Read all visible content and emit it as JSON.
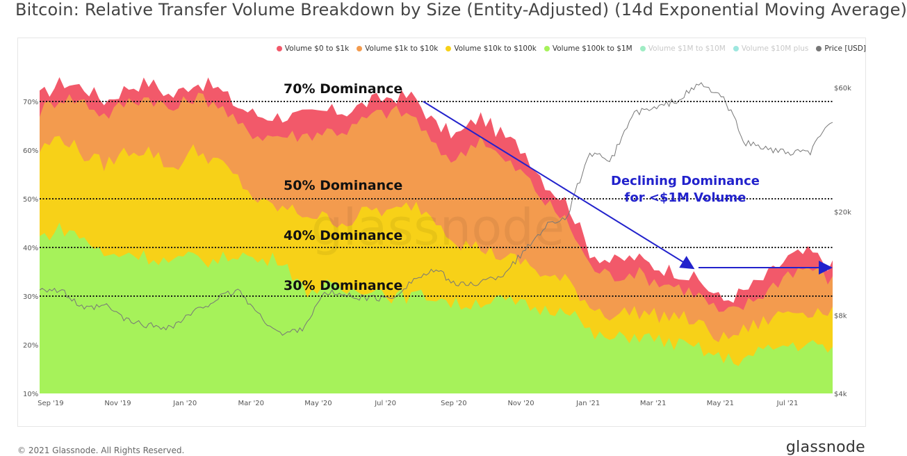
{
  "title": "Bitcoin: Relative Transfer Volume Breakdown by Size (Entity-Adjusted) (14d Exponential Moving Average)",
  "footer": {
    "copyright": "© 2021 Glassnode. All Rights Reserved.",
    "brand": "glassnode"
  },
  "watermark": "glassnode",
  "legend": [
    {
      "label": "Volume $0 to $1k",
      "color": "#f2596a",
      "dim": false
    },
    {
      "label": "Volume $1k to $10k",
      "color": "#f39b4e",
      "dim": false
    },
    {
      "label": "Volume $10k to $100k",
      "color": "#f7d118",
      "dim": false
    },
    {
      "label": "Volume $100k to $1M",
      "color": "#a6f25a",
      "dim": false
    },
    {
      "label": "Volume $1M to $10M",
      "color": "#2ad47d",
      "dim": true
    },
    {
      "label": "Volume $10M plus",
      "color": "#25c9b9",
      "dim": true
    },
    {
      "label": "Price [USD]",
      "color": "#777777",
      "dim": false
    }
  ],
  "annotations": {
    "dom70": "70% Dominance",
    "dom50": "50% Dominance",
    "dom40": "40% Dominance",
    "dom30": "30% Dominance",
    "declining_line1": "Declining Dominance",
    "declining_line2": "for <$1M Volume",
    "color": "#2222cc"
  },
  "chart_data": {
    "type": "area",
    "stacked": true,
    "x_tick_labels": [
      "Sep '19",
      "Nov '19",
      "Jan '20",
      "Mar '20",
      "May '20",
      "Jul '20",
      "Sep '20",
      "Nov '20",
      "Jan '21",
      "Mar '21",
      "May '21",
      "Jul '21"
    ],
    "y_left_ticks": [
      "10%",
      "20%",
      "30%",
      "40%",
      "50%",
      "60%",
      "70%"
    ],
    "y_left_range": [
      10,
      78
    ],
    "y_right_ticks": [
      "$4k",
      "$8k",
      "$20k",
      "$60k"
    ],
    "y_right_scale": "log",
    "y_right_range": [
      4000,
      75000
    ],
    "dominance_levels": [
      70,
      50,
      40,
      30
    ],
    "x_dates": [
      "2019-08-22",
      "2019-09-11",
      "2019-10-01",
      "2019-10-21",
      "2019-11-10",
      "2019-11-30",
      "2019-12-20",
      "2020-01-09",
      "2020-01-29",
      "2020-02-18",
      "2020-03-09",
      "2020-03-29",
      "2020-04-18",
      "2020-05-08",
      "2020-05-28",
      "2020-06-17",
      "2020-07-07",
      "2020-07-27",
      "2020-08-16",
      "2020-09-05",
      "2020-09-25",
      "2020-10-15",
      "2020-11-04",
      "2020-11-24",
      "2020-12-14",
      "2021-01-03",
      "2021-01-23",
      "2021-02-12",
      "2021-03-04",
      "2021-03-24",
      "2021-04-13",
      "2021-05-03",
      "2021-05-23",
      "2021-06-12",
      "2021-07-02",
      "2021-07-22",
      "2021-08-11"
    ],
    "series": [
      {
        "name": "Volume $100k to $1M",
        "color": "#a6f25a",
        "cumulative_top": [
          42,
          44,
          42,
          38,
          39,
          38,
          37,
          38,
          37,
          39,
          37,
          38,
          31,
          32,
          31,
          32,
          30,
          30,
          30,
          28,
          29,
          29,
          28,
          27,
          28,
          22,
          21,
          22,
          21,
          20,
          19,
          17,
          17,
          19,
          20,
          20,
          19
        ]
      },
      {
        "name": "Volume $10k to $100k",
        "color": "#f7d118",
        "cumulative_top": [
          60,
          63,
          59,
          57,
          60,
          60,
          56,
          60,
          58,
          54,
          49,
          48,
          47,
          46,
          45,
          48,
          47,
          49,
          46,
          41,
          40,
          38,
          37,
          34,
          33,
          28,
          26,
          27,
          26,
          26,
          24,
          21,
          23,
          25,
          27,
          27,
          27
        ]
      },
      {
        "name": "Volume $1k to $10k",
        "color": "#f39b4e",
        "cumulative_top": [
          68,
          71,
          70,
          67,
          70,
          71,
          68,
          71,
          70,
          65,
          63,
          63,
          63,
          64,
          64,
          67,
          68,
          67,
          60,
          58,
          63,
          58,
          55,
          49,
          45,
          36,
          34,
          35,
          33,
          32,
          30,
          26,
          28,
          31,
          35,
          36,
          33
        ]
      },
      {
        "name": "Volume $0 to $1k",
        "color": "#f2596a",
        "cumulative_top": [
          71,
          74,
          73,
          70,
          73,
          74,
          71,
          74,
          73,
          69,
          67,
          67,
          67,
          68,
          68,
          70,
          71,
          71,
          65,
          63,
          67,
          63,
          60,
          53,
          49,
          39,
          37,
          38,
          36,
          35,
          33,
          29,
          31,
          34,
          38,
          39,
          36
        ]
      },
      {
        "name": "Price [USD]",
        "color": "#777777",
        "values": [
          10200,
          9900,
          8400,
          8700,
          7600,
          7300,
          7200,
          8200,
          9200,
          10000,
          7900,
          6700,
          7200,
          9800,
          9500,
          9300,
          9300,
          11000,
          11900,
          10400,
          10700,
          11400,
          14000,
          17800,
          19300,
          33000,
          32000,
          48000,
          50000,
          54000,
          62000,
          55000,
          37000,
          35000,
          33500,
          34000,
          45000
        ]
      }
    ]
  }
}
